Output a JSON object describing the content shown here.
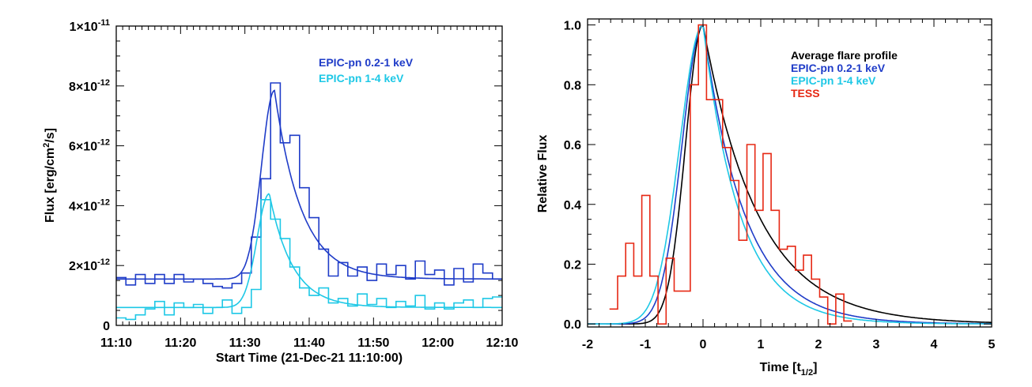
{
  "chart_data": [
    {
      "type": "line",
      "xlabel": "Start Time (21-Dec-21 11:10:00)",
      "ylabel": "Flux [erg/cm²/s]",
      "ylabel_parts": {
        "main": "Flux [erg/cm",
        "sup": "2",
        "rest": "/s]"
      },
      "x_unit": "minutes after 11:10:00",
      "xlim": [
        0,
        60
      ],
      "ylim": [
        0,
        1e-11
      ],
      "x_ticks": [
        {
          "x": 0,
          "label": "11:10"
        },
        {
          "x": 10,
          "label": "11:20"
        },
        {
          "x": 20,
          "label": "11:30"
        },
        {
          "x": 30,
          "label": "11:40"
        },
        {
          "x": 40,
          "label": "11:50"
        },
        {
          "x": 50,
          "label": "12:00"
        },
        {
          "x": 60,
          "label": "12:10"
        }
      ],
      "y_ticks": [
        {
          "y": 0,
          "mant": "0",
          "exp": ""
        },
        {
          "y": 2e-12,
          "mant": "2×10",
          "exp": "-12"
        },
        {
          "y": 4e-12,
          "mant": "4×10",
          "exp": "-12"
        },
        {
          "y": 6e-12,
          "mant": "6×10",
          "exp": "-12"
        },
        {
          "y": 8e-12,
          "mant": "8×10",
          "exp": "-12"
        },
        {
          "y": 1e-11,
          "mant": "1×10",
          "exp": "-11"
        }
      ],
      "legend": [
        "EPIC-pn 0.2-1 keV",
        "EPIC-pn 1-4 keV"
      ],
      "legend_position": "top-right",
      "series": [
        {
          "name": "EPIC-pn 0.2-1 keV",
          "style": "histogram",
          "color": "#1f3cc8",
          "bin_width": 1.5,
          "x": [
            0,
            1.5,
            3,
            4.5,
            6,
            7.5,
            9,
            10.5,
            12,
            13.5,
            15,
            16.5,
            18,
            19.5,
            21,
            22.5,
            24,
            25.5,
            27,
            28.5,
            30,
            31.5,
            33,
            34.5,
            36,
            37.5,
            39,
            40.5,
            42,
            43.5,
            45,
            46.5,
            48,
            49.5,
            51,
            52.5,
            54,
            55.5,
            57,
            58.5
          ],
          "values": [
            1.6e-12,
            1.35e-12,
            1.7e-12,
            1.4e-12,
            1.7e-12,
            1.4e-12,
            1.7e-12,
            1.45e-12,
            1.55e-12,
            1.4e-12,
            1.3e-12,
            1.25e-12,
            1.4e-12,
            1.75e-12,
            2.95e-12,
            4.9e-12,
            8.1e-12,
            6.1e-12,
            6.35e-12,
            4.6e-12,
            3.6e-12,
            2.55e-12,
            1.65e-12,
            2.1e-12,
            1.65e-12,
            1.95e-12,
            1.5e-12,
            2.05e-12,
            1.7e-12,
            2e-12,
            1.55e-12,
            2.15e-12,
            1.7e-12,
            1.85e-12,
            1.35e-12,
            1.9e-12,
            1.45e-12,
            2.05e-12,
            1.75e-12,
            1.55e-12
          ]
        },
        {
          "name": "EPIC-pn 0.2-1 keV",
          "style": "model",
          "color": "#1f3cc8",
          "baseline": 1.55e-12,
          "peak": 7.85e-12,
          "t_peak": 24.6,
          "rise_sigma": 2.0,
          "decay_tau": 4.2
        },
        {
          "name": "EPIC-pn 1-4 keV",
          "style": "histogram",
          "color": "#1ec8e6",
          "bin_width": 1.5,
          "x": [
            0,
            1.5,
            3,
            4.5,
            6,
            7.5,
            9,
            10.5,
            12,
            13.5,
            15,
            16.5,
            18,
            19.5,
            21,
            22.5,
            24,
            25.5,
            27,
            28.5,
            30,
            31.5,
            33,
            34.5,
            36,
            37.5,
            39,
            40.5,
            42,
            43.5,
            45,
            46.5,
            48,
            49.5,
            51,
            52.5,
            54,
            55.5,
            57,
            58.5
          ],
          "values": [
            2.5e-13,
            2e-13,
            3.5e-13,
            5.5e-13,
            8e-13,
            3.5e-13,
            7.5e-13,
            6e-13,
            7e-13,
            4e-13,
            6e-13,
            8.5e-13,
            4e-13,
            6e-13,
            1.2e-12,
            4.2e-12,
            3.55e-12,
            2.9e-12,
            1.95e-12,
            1.25e-12,
            1e-12,
            1.25e-12,
            7.5e-13,
            9e-13,
            6.5e-13,
            1.05e-12,
            7e-13,
            9e-13,
            6e-13,
            8e-13,
            6.5e-13,
            1e-12,
            5.5e-13,
            7.5e-13,
            5.5e-13,
            7.5e-13,
            8.5e-13,
            6e-13,
            9e-13,
            9.5e-13
          ]
        },
        {
          "name": "EPIC-pn 1-4 keV",
          "style": "model",
          "color": "#1ec8e6",
          "baseline": 6e-13,
          "peak": 4.4e-12,
          "t_peak": 23.8,
          "rise_sigma": 1.9,
          "decay_tau": 3.6
        }
      ]
    },
    {
      "type": "line",
      "xlabel": "Time [t1/2]",
      "xlabel_parts": {
        "main": "Time [t",
        "sub": "1/2",
        "rest": "]"
      },
      "ylabel": "Relative Flux",
      "xlim": [
        -2,
        5
      ],
      "ylim": [
        -0.01,
        1.02
      ],
      "x_ticks": [
        {
          "x": -2,
          "label": "-2"
        },
        {
          "x": -1,
          "label": "-1"
        },
        {
          "x": 0,
          "label": "0"
        },
        {
          "x": 1,
          "label": "1"
        },
        {
          "x": 2,
          "label": "2"
        },
        {
          "x": 3,
          "label": "3"
        },
        {
          "x": 4,
          "label": "4"
        },
        {
          "x": 5,
          "label": "5"
        }
      ],
      "y_ticks": [
        {
          "y": 0.0,
          "label": "0.0"
        },
        {
          "y": 0.2,
          "label": "0.2"
        },
        {
          "y": 0.4,
          "label": "0.4"
        },
        {
          "y": 0.6,
          "label": "0.6"
        },
        {
          "y": 0.8,
          "label": "0.8"
        },
        {
          "y": 1.0,
          "label": "1.0"
        }
      ],
      "legend": [
        "Average flare profile",
        "EPIC-pn 0.2-1 keV",
        "EPIC-pn 1-4 keV",
        "TESS"
      ],
      "legend_position": "top-right",
      "series": [
        {
          "name": "Average flare profile",
          "style": "model",
          "color": "#000000",
          "rise_sigma": 0.3,
          "decay_tau": 0.95
        },
        {
          "name": "EPIC-pn 0.2-1 keV",
          "style": "model",
          "color": "#1f3cc8",
          "rise_sigma": 0.36,
          "decay_tau": 0.72
        },
        {
          "name": "EPIC-pn 1-4 keV",
          "style": "model",
          "color": "#1ec8e6",
          "rise_sigma": 0.4,
          "decay_tau": 0.64
        },
        {
          "name": "TESS",
          "style": "histogram",
          "color": "#e62814",
          "bin_width": 0.14,
          "x": [
            -1.62,
            -1.48,
            -1.34,
            -1.2,
            -1.06,
            -0.92,
            -0.78,
            -0.64,
            -0.5,
            -0.36,
            -0.22,
            -0.08,
            0.06,
            0.2,
            0.34,
            0.48,
            0.62,
            0.76,
            0.9,
            1.04,
            1.18,
            1.32,
            1.46,
            1.6,
            1.74,
            1.88,
            2.02,
            2.16,
            2.3,
            2.44
          ],
          "values": [
            0.05,
            0.16,
            0.27,
            0.16,
            0.43,
            0.16,
            0.0,
            0.22,
            0.11,
            0.11,
            0.8,
            1.0,
            0.75,
            0.75,
            0.59,
            0.48,
            0.28,
            0.6,
            0.38,
            0.57,
            0.38,
            0.25,
            0.26,
            0.18,
            0.23,
            0.15,
            0.09,
            0.0,
            0.1,
            0.01
          ]
        }
      ]
    }
  ]
}
